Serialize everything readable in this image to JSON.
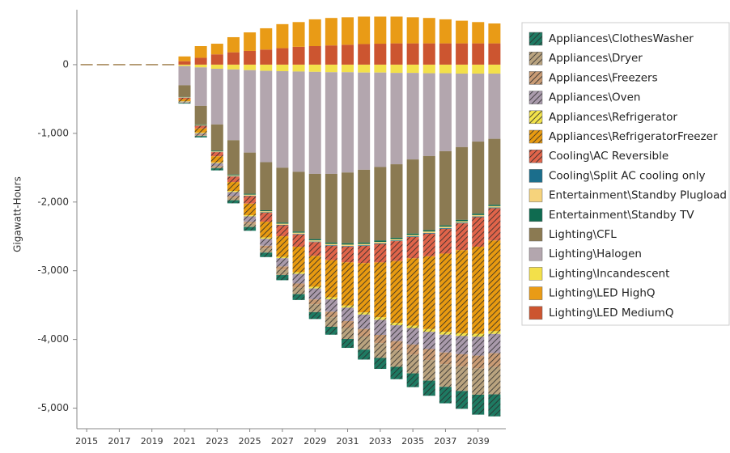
{
  "chart_data": {
    "type": "stacked-bar",
    "y_label": "Gigawatt-Hours",
    "x": [
      2015,
      2016,
      2017,
      2018,
      2019,
      2020,
      2021,
      2022,
      2023,
      2024,
      2025,
      2026,
      2027,
      2028,
      2029,
      2030,
      2031,
      2032,
      2033,
      2034,
      2035,
      2036,
      2037,
      2038,
      2039,
      2040
    ],
    "xlim": [
      2014.4,
      2040.7
    ],
    "xticks": [
      2015,
      2017,
      2019,
      2021,
      2023,
      2025,
      2027,
      2029,
      2031,
      2033,
      2035,
      2037,
      2039
    ],
    "ylim": [
      -5300,
      800
    ],
    "yticks": [
      {
        "value": -5000,
        "label": "-5,000"
      },
      {
        "value": -4000,
        "label": "-4,000"
      },
      {
        "value": -3000,
        "label": "-3,000"
      },
      {
        "value": -2000,
        "label": "-2,000"
      },
      {
        "value": -1000,
        "label": "-1,000"
      },
      0
    ],
    "series": [
      {
        "name": "Appliances\\ClothesWasher",
        "color": "#1e7a62",
        "hatch": true,
        "values": [
          0,
          0,
          0,
          0,
          0,
          0,
          -10,
          -20,
          -30,
          -45,
          -55,
          -65,
          -75,
          -85,
          -100,
          -115,
          -130,
          -145,
          -160,
          -180,
          -200,
          -220,
          -240,
          -260,
          -290,
          -320
        ]
      },
      {
        "name": "Appliances\\Dryer",
        "color": "#b9a37f",
        "hatch": true,
        "values": [
          0,
          0,
          0,
          0,
          0,
          0,
          -5,
          -10,
          -20,
          -35,
          -45,
          -60,
          -75,
          -95,
          -115,
          -140,
          -165,
          -190,
          -215,
          -240,
          -270,
          -300,
          -330,
          -355,
          -380,
          -400
        ]
      },
      {
        "name": "Appliances\\Freezers",
        "color": "#c99b74",
        "hatch": true,
        "values": [
          0,
          0,
          0,
          0,
          0,
          0,
          -5,
          -10,
          -15,
          -25,
          -30,
          -40,
          -50,
          -60,
          -70,
          -80,
          -95,
          -110,
          -120,
          -135,
          -150,
          -160,
          -170,
          -180,
          -190,
          -200
        ]
      },
      {
        "name": "Appliances\\Oven",
        "color": "#a99aab",
        "hatch": true,
        "values": [
          0,
          0,
          0,
          0,
          0,
          0,
          -10,
          -20,
          -40,
          -60,
          -80,
          -100,
          -120,
          -140,
          -160,
          -180,
          -195,
          -210,
          -220,
          -230,
          -240,
          -250,
          -260,
          -265,
          -275,
          -280
        ]
      },
      {
        "name": "Appliances\\Refrigerator",
        "color": "#f2e24a",
        "hatch": true,
        "values": [
          0,
          0,
          0,
          0,
          0,
          0,
          -5,
          -10,
          -10,
          -15,
          -15,
          -20,
          -20,
          -25,
          -25,
          -30,
          -30,
          -30,
          -35,
          -35,
          -35,
          -40,
          -40,
          -40,
          -40,
          -40
        ]
      },
      {
        "name": "Appliances\\RefrigeratorFreezer",
        "color": "#e89a10",
        "hatch": true,
        "values": [
          0,
          0,
          0,
          0,
          0,
          0,
          -30,
          -60,
          -90,
          -130,
          -170,
          -230,
          -300,
          -370,
          -450,
          -540,
          -630,
          -720,
          -800,
          -900,
          -980,
          -1060,
          -1140,
          -1210,
          -1270,
          -1320
        ]
      },
      {
        "name": "Cooling\\AC Reversible",
        "color": "#e0644a",
        "hatch": true,
        "values": [
          0,
          0,
          0,
          0,
          0,
          0,
          -20,
          -40,
          -60,
          -80,
          -110,
          -130,
          -160,
          -180,
          -200,
          -210,
          -230,
          -250,
          -270,
          -290,
          -310,
          -330,
          -360,
          -390,
          -430,
          -470
        ]
      },
      {
        "name": "Cooling\\Split AC cooling only",
        "color": "#1b6e8c",
        "hatch": false,
        "values": [
          0,
          0,
          0,
          0,
          0,
          0,
          -2,
          -3,
          -4,
          -5,
          -5,
          -6,
          -6,
          -7,
          -7,
          -8,
          -8,
          -8,
          -9,
          -9,
          -9,
          -10,
          -10,
          -10,
          -10,
          -10
        ]
      },
      {
        "name": "Entertainment\\Standby Plugload",
        "color": "#f6d37c",
        "hatch": false,
        "values": [
          0,
          0,
          0,
          0,
          0,
          0,
          -5,
          -8,
          -10,
          -12,
          -14,
          -15,
          -16,
          -17,
          -18,
          -19,
          -20,
          -20,
          -20,
          -20,
          -20,
          -20,
          -20,
          -20,
          -20,
          -20
        ]
      },
      {
        "name": "Entertainment\\Standby TV",
        "color": "#0f6b50",
        "hatch": false,
        "values": [
          0,
          0,
          0,
          0,
          0,
          0,
          -5,
          -8,
          -10,
          -12,
          -14,
          -15,
          -16,
          -17,
          -18,
          -19,
          -20,
          -20,
          -20,
          -20,
          -20,
          -20,
          -20,
          -20,
          -20,
          -20
        ]
      },
      {
        "name": "Lighting\\CFL",
        "color": "#8b7a52",
        "hatch": false,
        "values": [
          0,
          0,
          0,
          0,
          0,
          0,
          -170,
          -270,
          -380,
          -500,
          -600,
          -700,
          -800,
          -870,
          -950,
          -1000,
          -1030,
          -1060,
          -1070,
          -1070,
          -1080,
          -1080,
          -1080,
          -1060,
          -1050,
          -960
        ]
      },
      {
        "name": "Lighting\\Halogen",
        "color": "#b3a6ae",
        "hatch": false,
        "values": [
          0,
          0,
          0,
          0,
          0,
          0,
          -280,
          -560,
          -810,
          -1030,
          -1200,
          -1330,
          -1405,
          -1460,
          -1485,
          -1480,
          -1460,
          -1415,
          -1375,
          -1330,
          -1260,
          -1205,
          -1135,
          -1070,
          -990,
          -950
        ]
      },
      {
        "name": "Lighting\\Incandescent",
        "color": "#f3e04a",
        "hatch": false,
        "values": [
          0,
          0,
          0,
          0,
          0,
          0,
          -20,
          -40,
          -60,
          -70,
          -80,
          -90,
          -95,
          -100,
          -105,
          -110,
          -110,
          -115,
          -115,
          -120,
          -120,
          -125,
          -125,
          -130,
          -130,
          -130
        ]
      },
      {
        "name": "Lighting\\LED HighQ",
        "color": "#e99b16",
        "hatch": false,
        "values": [
          0,
          0,
          0,
          0,
          0,
          0,
          70,
          170,
          155,
          220,
          270,
          310,
          350,
          360,
          390,
          400,
          400,
          400,
          395,
          390,
          380,
          370,
          350,
          330,
          310,
          290
        ]
      },
      {
        "name": "Lighting\\LED MediumQ",
        "color": "#cc5530",
        "hatch": false,
        "values": [
          0,
          0,
          0,
          0,
          0,
          0,
          50,
          100,
          150,
          180,
          200,
          220,
          240,
          260,
          270,
          280,
          290,
          300,
          305,
          310,
          310,
          310,
          310,
          310,
          310,
          310
        ]
      }
    ]
  }
}
